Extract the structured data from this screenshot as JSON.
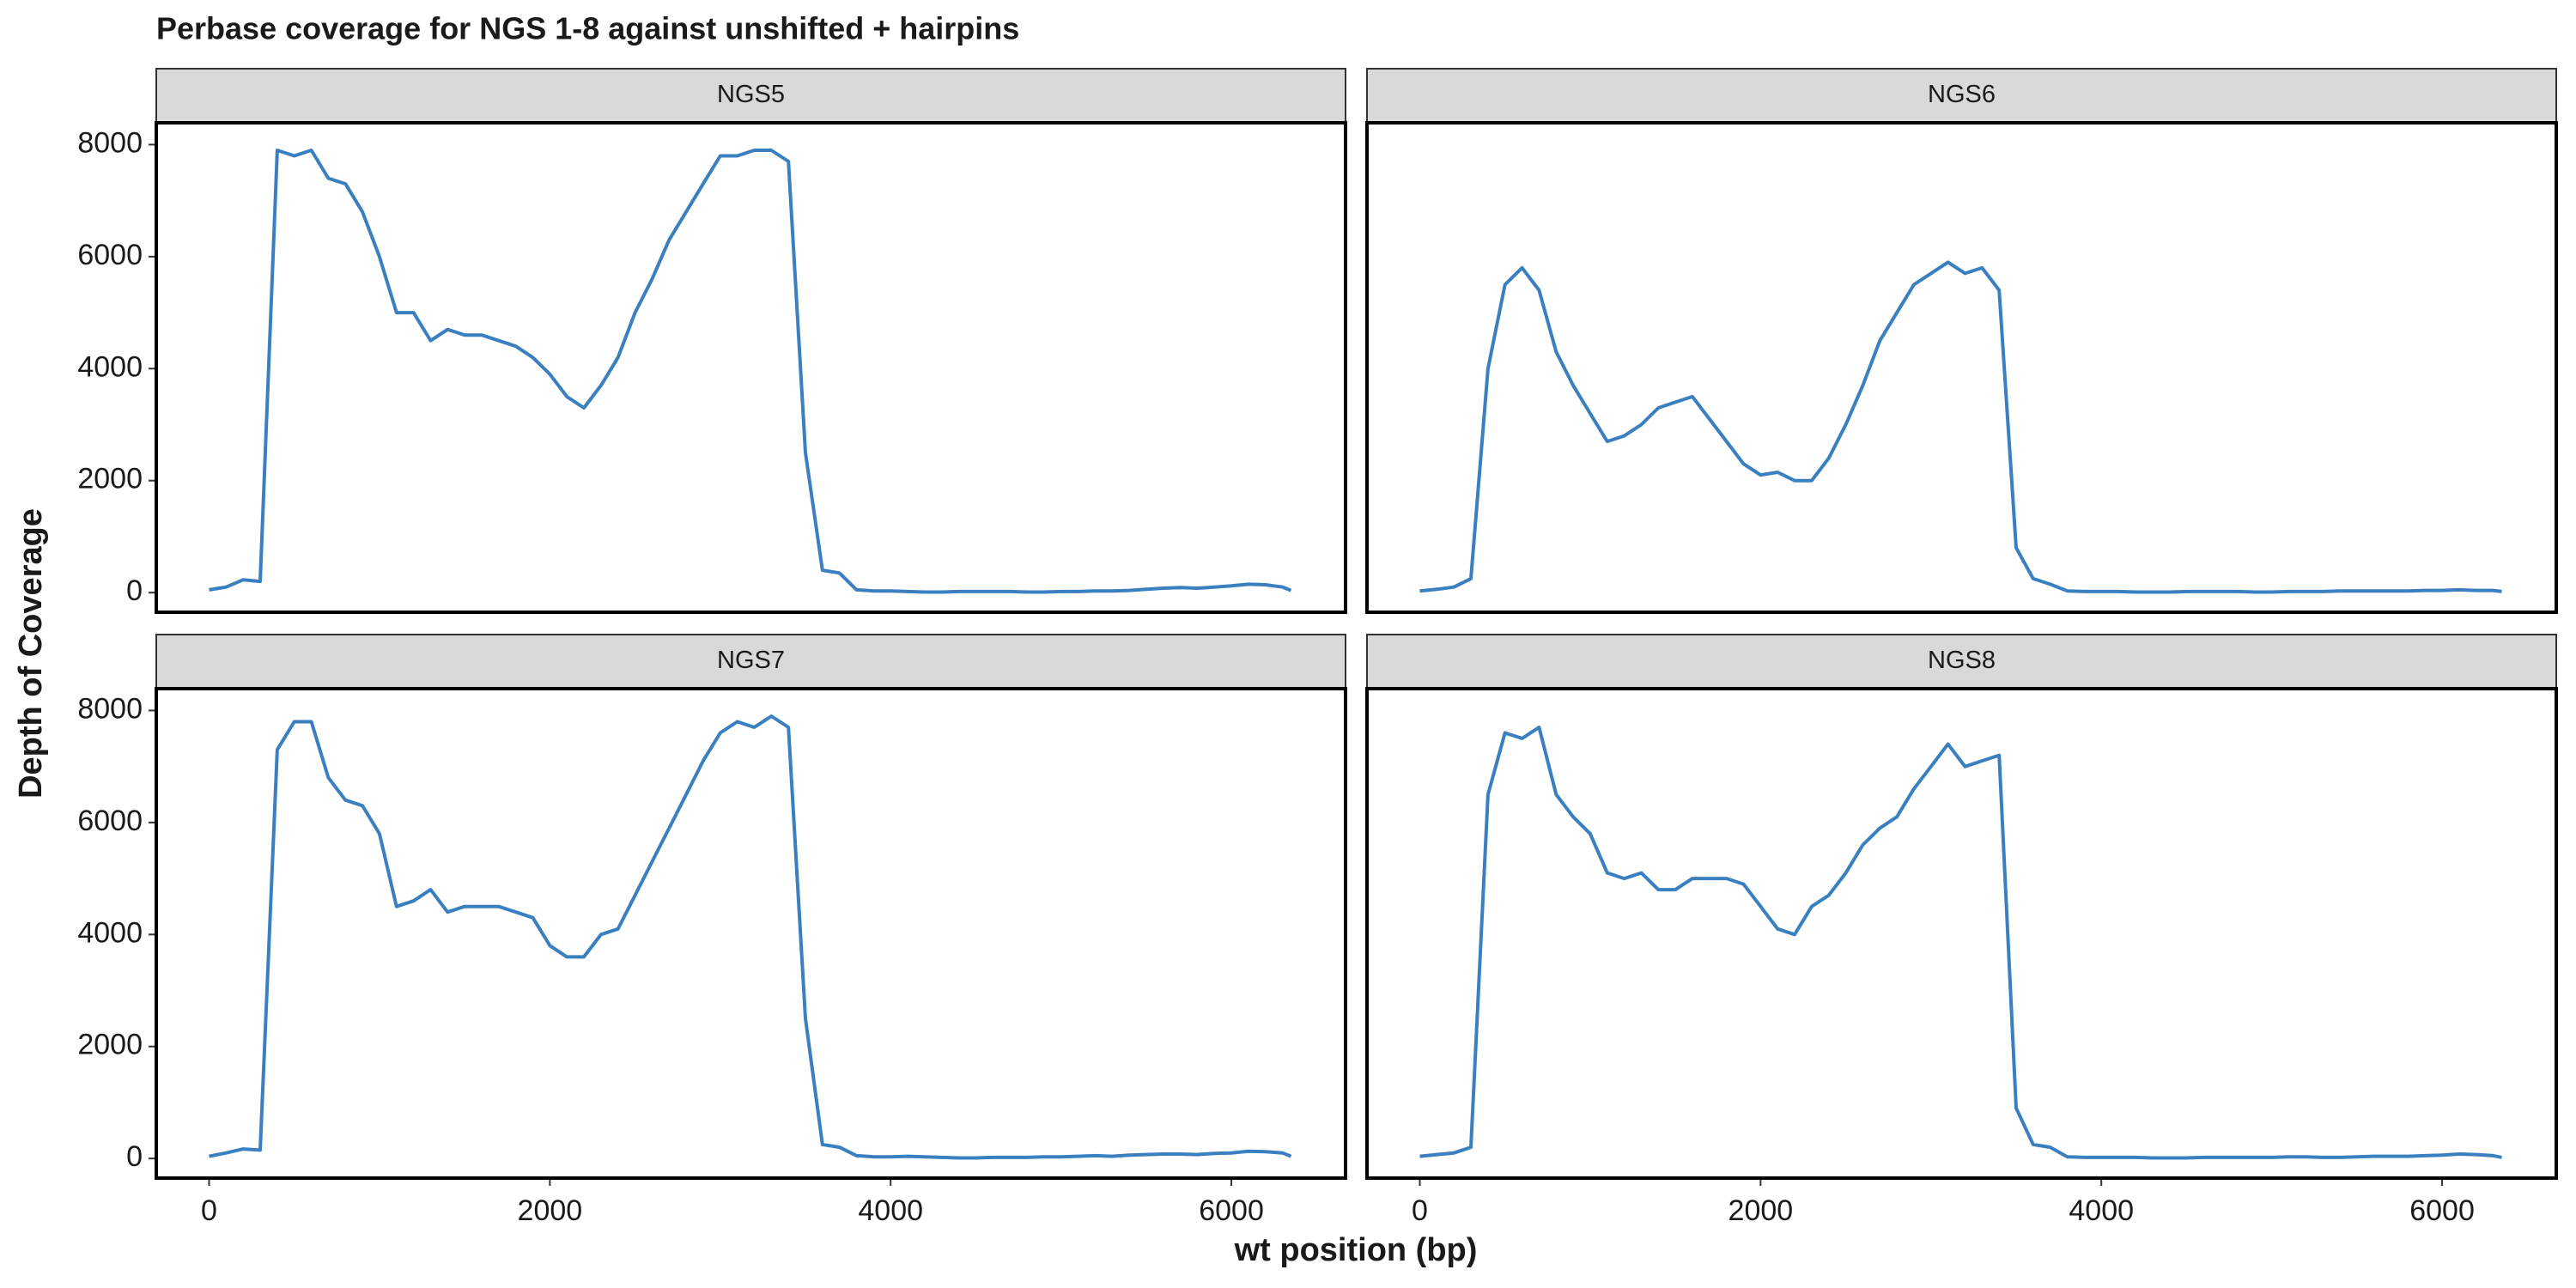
{
  "chart_data": {
    "type": "line",
    "title": "Perbase coverage for NGS 1-8 against unshifted + hairpins",
    "x_label": "wt position (bp)",
    "y_label": "Depth of Coverage",
    "x": [
      0,
      100,
      200,
      300,
      400,
      500,
      600,
      700,
      800,
      900,
      1000,
      1100,
      1200,
      1300,
      1400,
      1500,
      1600,
      1700,
      1800,
      1900,
      2000,
      2100,
      2200,
      2300,
      2400,
      2500,
      2600,
      2700,
      2800,
      2900,
      3000,
      3100,
      3200,
      3300,
      3400,
      3500,
      3600,
      3700,
      3800,
      3900,
      4000,
      4100,
      4200,
      4300,
      4400,
      4500,
      4600,
      4700,
      4800,
      4900,
      5000,
      5100,
      5200,
      5300,
      5400,
      5500,
      5600,
      5700,
      5800,
      5900,
      6000,
      6100,
      6200,
      6300,
      6350
    ],
    "series": [
      {
        "name": "NGS5",
        "color": "#3a7fbf",
        "values": [
          50,
          100,
          230,
          200,
          7900,
          7800,
          7900,
          7400,
          7300,
          6800,
          6000,
          5000,
          5000,
          4500,
          4700,
          4600,
          4600,
          4500,
          4400,
          4200,
          3900,
          3500,
          3300,
          3700,
          4200,
          5000,
          5600,
          6300,
          6800,
          7300,
          7800,
          7800,
          7900,
          7900,
          7700,
          2500,
          400,
          350,
          50,
          30,
          30,
          20,
          10,
          10,
          20,
          20,
          20,
          20,
          10,
          10,
          20,
          20,
          30,
          30,
          40,
          60,
          80,
          90,
          80,
          100,
          120,
          150,
          140,
          100,
          40
        ]
      },
      {
        "name": "NGS6",
        "color": "#3a7fbf",
        "values": [
          30,
          60,
          100,
          250,
          4000,
          5500,
          5800,
          5400,
          4300,
          3700,
          3200,
          2700,
          2800,
          3000,
          3300,
          3400,
          3500,
          3100,
          2700,
          2300,
          2100,
          2150,
          2000,
          2000,
          2400,
          3000,
          3700,
          4500,
          5000,
          5500,
          5700,
          5900,
          5700,
          5800,
          5400,
          800,
          250,
          150,
          30,
          20,
          20,
          20,
          10,
          10,
          10,
          20,
          20,
          20,
          20,
          10,
          10,
          20,
          20,
          20,
          30,
          30,
          30,
          30,
          30,
          40,
          40,
          50,
          40,
          40,
          20
        ]
      },
      {
        "name": "NGS7",
        "color": "#3a7fbf",
        "values": [
          40,
          100,
          170,
          150,
          7300,
          7800,
          7800,
          6800,
          6400,
          6300,
          5800,
          4500,
          4600,
          4800,
          4400,
          4500,
          4500,
          4500,
          4400,
          4300,
          3800,
          3600,
          3600,
          4000,
          4100,
          4700,
          5300,
          5900,
          6500,
          7100,
          7600,
          7800,
          7700,
          7900,
          7700,
          2500,
          250,
          200,
          50,
          30,
          30,
          40,
          30,
          20,
          10,
          10,
          20,
          20,
          20,
          30,
          30,
          40,
          50,
          40,
          60,
          70,
          80,
          80,
          70,
          90,
          100,
          130,
          120,
          100,
          40
        ]
      },
      {
        "name": "NGS8",
        "color": "#3a7fbf",
        "values": [
          40,
          70,
          100,
          200,
          6500,
          7600,
          7500,
          7700,
          6500,
          6100,
          5800,
          5100,
          5000,
          5100,
          4800,
          4800,
          5000,
          5000,
          5000,
          4900,
          4500,
          4100,
          4000,
          4500,
          4700,
          5100,
          5600,
          5900,
          6100,
          6600,
          7000,
          7400,
          7000,
          7100,
          7200,
          900,
          250,
          200,
          30,
          20,
          20,
          20,
          20,
          10,
          10,
          10,
          20,
          20,
          20,
          20,
          20,
          30,
          30,
          20,
          20,
          30,
          40,
          40,
          40,
          50,
          60,
          80,
          70,
          50,
          20
        ]
      }
    ],
    "xlim": [
      -310,
      6670
    ],
    "ylim": [
      -350,
      8390
    ],
    "xticks": [
      0,
      2000,
      4000,
      6000
    ],
    "yticks": [
      0,
      2000,
      4000,
      6000,
      8000
    ],
    "grid": false,
    "ncol": 2
  }
}
